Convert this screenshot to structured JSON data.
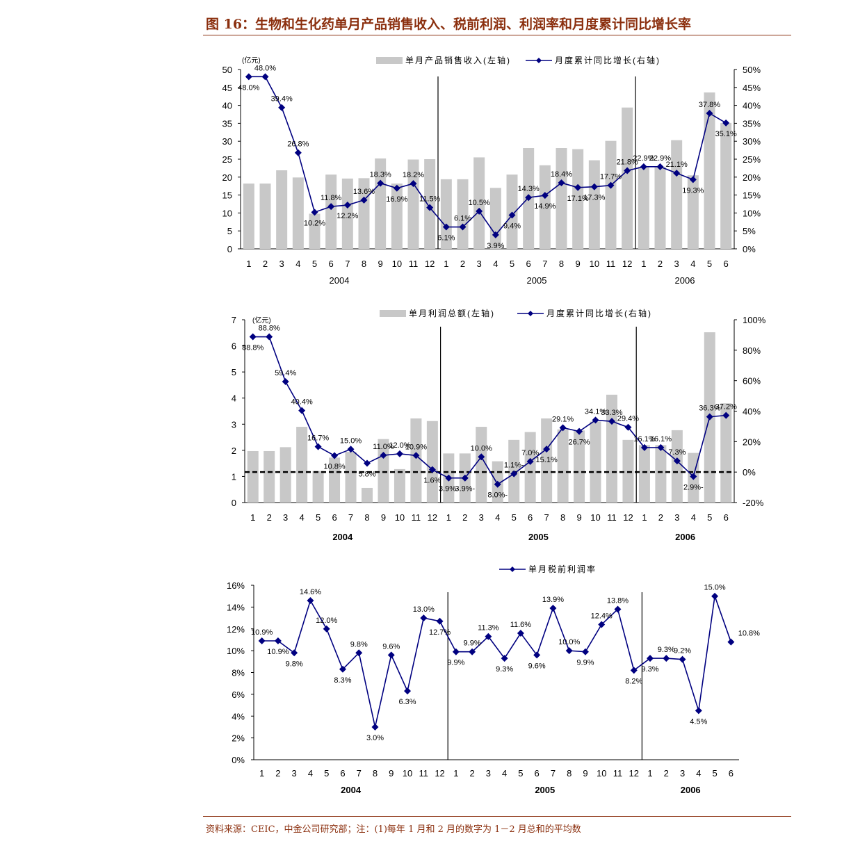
{
  "page": {
    "title": "图 16：生物和生化药单月产品销售收入、税前利润、利润率和月度累计同比增长率",
    "source": "资料来源：CEIC，中金公司研究部；注：(1)每年 1 月和 2 月的数字为 1－2 月总和的平均数"
  },
  "colors": {
    "bar": "#c8c8c8",
    "line": "#000080",
    "text": "#000000",
    "accent": "#8B2F0E"
  },
  "chart_data": [
    {
      "type": "bar+line",
      "unit_label": "(亿元)",
      "categories": [
        "1",
        "2",
        "3",
        "4",
        "5",
        "6",
        "7",
        "8",
        "9",
        "10",
        "11",
        "12",
        "1",
        "2",
        "3",
        "4",
        "5",
        "6",
        "7",
        "8",
        "9",
        "10",
        "11",
        "12",
        "1",
        "2",
        "3",
        "4",
        "5",
        "6"
      ],
      "years": [
        {
          "label": "2004",
          "from": 0,
          "to": 11
        },
        {
          "label": "2005",
          "from": 12,
          "to": 23
        },
        {
          "label": "2006",
          "from": 24,
          "to": 29
        }
      ],
      "left_axis": {
        "min": 0,
        "max": 50,
        "ticks": [
          "0",
          "5",
          "10",
          "15",
          "20",
          "25",
          "30",
          "35",
          "40",
          "45",
          "50"
        ]
      },
      "right_axis": {
        "min": 0,
        "max": 50,
        "ticks": [
          "0%",
          "5%",
          "10%",
          "15%",
          "20%",
          "25%",
          "30%",
          "35%",
          "40%",
          "45%",
          "50%"
        ]
      },
      "legend": [
        "单月产品销售收入(左轴)",
        "月度累计同比增长(右轴)"
      ],
      "bars": [
        18.2,
        18.2,
        21.9,
        19.9,
        9.8,
        20.7,
        19.6,
        19.7,
        25.2,
        18.2,
        24.9,
        25.0,
        19.4,
        19.4,
        25.5,
        17.0,
        20.7,
        28.1,
        23.3,
        28.1,
        27.8,
        24.7,
        30.1,
        39.4,
        22.9,
        22.9,
        30.3,
        20.5,
        43.6,
        35.1
      ],
      "line": [
        48.0,
        48.0,
        39.4,
        26.8,
        10.2,
        11.8,
        12.2,
        13.6,
        18.3,
        16.9,
        18.2,
        11.5,
        6.1,
        6.1,
        10.5,
        3.9,
        9.4,
        14.3,
        14.9,
        18.4,
        17.1,
        17.3,
        17.7,
        21.8,
        22.9,
        22.9,
        21.1,
        19.3,
        37.8,
        35.1
      ],
      "data_labels": [
        "48.0%",
        "48.0%",
        "39.4%",
        "26.8%",
        "10.2%",
        "11.8%",
        "12.2%",
        "13.6%",
        "18.3%",
        "16.9%",
        "18.2%",
        "11.5%",
        "6.1%",
        "6.1%",
        "10.5%",
        "3.9%",
        "9.4%",
        "14.3%",
        "14.9%",
        "18.4%",
        "17.1%",
        "17.3%",
        "17.7%",
        "21.8%",
        "22.9%",
        "22.9%",
        "21.1%",
        "19.3%",
        "37.8%",
        "35.1%"
      ]
    },
    {
      "type": "bar+line",
      "unit_label": "(亿元)",
      "categories": [
        "1",
        "2",
        "3",
        "4",
        "5",
        "6",
        "7",
        "8",
        "9",
        "10",
        "11",
        "12",
        "1",
        "2",
        "3",
        "4",
        "5",
        "6",
        "7",
        "8",
        "9",
        "10",
        "11",
        "12",
        "1",
        "2",
        "3",
        "4",
        "5",
        "6"
      ],
      "years": [
        {
          "label": "2004",
          "from": 0,
          "to": 11
        },
        {
          "label": "2005",
          "from": 12,
          "to": 23
        },
        {
          "label": "2006",
          "from": 24,
          "to": 29
        }
      ],
      "left_axis": {
        "min": 0,
        "max": 7,
        "ticks": [
          "0",
          "1",
          "2",
          "3",
          "4",
          "5",
          "6",
          "7"
        ]
      },
      "right_axis": {
        "min": -20,
        "max": 100,
        "ticks": [
          "-20%",
          "0%",
          "20%",
          "40%",
          "60%",
          "80%",
          "100%"
        ]
      },
      "legend": [
        "单月利润总额(左轴)",
        "月度累计同比增长(右轴)"
      ],
      "bars": [
        1.97,
        1.97,
        2.12,
        2.9,
        1.21,
        1.72,
        1.94,
        0.56,
        2.43,
        1.28,
        3.22,
        3.12,
        1.88,
        1.88,
        2.9,
        1.58,
        2.4,
        2.7,
        3.22,
        2.8,
        2.76,
        3.1,
        4.13,
        2.4,
        2.2,
        2.2,
        2.77,
        1.9,
        6.52,
        3.8
      ],
      "line": [
        88.8,
        88.8,
        59.4,
        40.4,
        16.7,
        10.8,
        15.0,
        5.8,
        11.0,
        12.0,
        10.9,
        1.6,
        -3.9,
        -3.9,
        10.0,
        -8.0,
        -1.1,
        7.0,
        15.1,
        29.1,
        26.7,
        34.1,
        33.3,
        29.4,
        16.1,
        16.1,
        7.3,
        -2.9,
        36.3,
        37.2
      ],
      "data_labels": [
        "88.8%",
        "88.8%",
        "59.4%",
        "40.4%",
        "16.7%",
        "10.8%",
        "15.0%",
        "5.8%",
        "11.0%",
        "12.0%",
        "10.9%",
        "1.6%",
        "3.9%-",
        "3.9%-",
        "10.0%",
        "8.0%-",
        "1.1%-",
        "7.0%",
        "15.1%",
        "29.1%",
        "26.7%",
        "34.1%",
        "33.3%",
        "29.4%",
        "16.1%",
        "16.1%",
        "7.3%",
        "2.9%-",
        "36.3%",
        "37.2%"
      ]
    },
    {
      "type": "line",
      "categories": [
        "1",
        "2",
        "3",
        "4",
        "5",
        "6",
        "7",
        "8",
        "9",
        "10",
        "11",
        "12",
        "1",
        "2",
        "3",
        "4",
        "5",
        "6",
        "7",
        "8",
        "9",
        "10",
        "11",
        "12",
        "1",
        "2",
        "3",
        "4",
        "5",
        "6"
      ],
      "years": [
        {
          "label": "2004",
          "from": 0,
          "to": 11
        },
        {
          "label": "2005",
          "from": 12,
          "to": 23
        },
        {
          "label": "2006",
          "from": 24,
          "to": 29
        }
      ],
      "left_axis": {
        "min": 0,
        "max": 16,
        "ticks": [
          "0%",
          "2%",
          "4%",
          "6%",
          "8%",
          "10%",
          "12%",
          "14%",
          "16%"
        ]
      },
      "legend": [
        "单月税前利润率"
      ],
      "line": [
        10.9,
        10.9,
        9.8,
        14.6,
        12.0,
        8.3,
        9.8,
        3.0,
        9.6,
        6.3,
        13.0,
        12.7,
        9.9,
        9.9,
        11.3,
        9.3,
        11.6,
        9.6,
        13.9,
        10.0,
        9.9,
        12.4,
        13.8,
        8.2,
        9.3,
        9.3,
        9.2,
        4.5,
        15.0,
        10.8
      ],
      "data_labels": [
        "10.9%",
        "10.9%",
        "9.8%",
        "14.6%",
        "12.0%",
        "8.3%",
        "9.8%",
        "3.0%",
        "9.6%",
        "6.3%",
        "13.0%",
        "12.7%",
        "9.9%",
        "9.9%",
        "11.3%",
        "9.3%",
        "11.6%",
        "9.6%",
        "13.9%",
        "10.0%",
        "9.9%",
        "12.4%",
        "13.8%",
        "8.2%",
        "9.3%",
        "9.3%",
        "9.2%",
        "4.5%",
        "15.0%",
        "10.8%"
      ]
    }
  ]
}
